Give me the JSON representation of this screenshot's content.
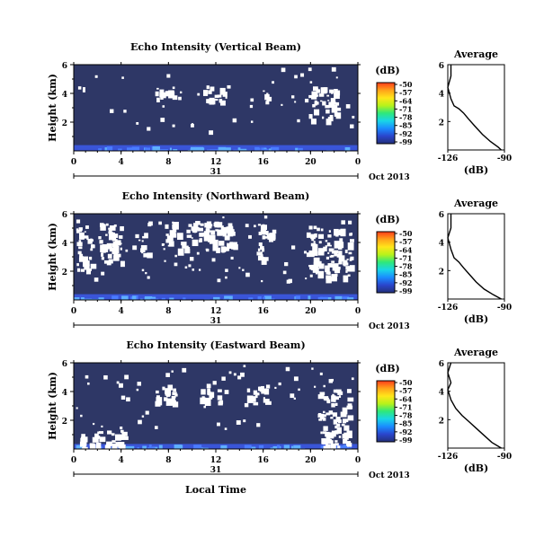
{
  "colors": {
    "background": "#2e3766",
    "near_ground": "#3a55d8",
    "surface": "#4a7cff",
    "gap": "#ffffff",
    "colorbar": [
      "#ff3b1a",
      "#ffa31a",
      "#ffe61a",
      "#b8f21a",
      "#2ee87a",
      "#19d6e6",
      "#1a8cff",
      "#2a45cc",
      "#23307a"
    ]
  },
  "panels": [
    {
      "title": "Echo Intensity (Vertical Beam)",
      "ylabel": "Height (km)",
      "yticks": [
        "6",
        "4",
        "2"
      ],
      "xticks": [
        "0",
        "4",
        "8",
        "12",
        "16",
        "20",
        "0"
      ],
      "date_day": "31",
      "date_label": "Oct 2013",
      "cb_unit": "(dB)",
      "cb_ticks": [
        "-50",
        "-57",
        "-64",
        "-71",
        "-78",
        "-85",
        "-92",
        "-99"
      ],
      "avg_title": "Average",
      "avg_yticks": [
        "6",
        "4",
        "2"
      ],
      "avg_xticks": [
        "-126",
        "-90"
      ],
      "avg_xlabel": "(dB)"
    },
    {
      "title": "Echo Intensity (Northward Beam)",
      "ylabel": "Height (km)",
      "yticks": [
        "6",
        "4",
        "2"
      ],
      "xticks": [
        "0",
        "4",
        "8",
        "12",
        "16",
        "20",
        "0"
      ],
      "date_day": "31",
      "date_label": "Oct 2013",
      "cb_unit": "(dB)",
      "cb_ticks": [
        "-50",
        "-57",
        "-64",
        "-71",
        "-78",
        "-85",
        "-92",
        "-99"
      ],
      "avg_title": "Average",
      "avg_yticks": [
        "6",
        "4",
        "2"
      ],
      "avg_xticks": [
        "-126",
        "-90"
      ],
      "avg_xlabel": "(dB)"
    },
    {
      "title": "Echo Intensity (Eastward Beam)",
      "ylabel": "Height (km)",
      "yticks": [
        "6",
        "4",
        "2"
      ],
      "xticks": [
        "0",
        "4",
        "8",
        "12",
        "16",
        "20",
        "0"
      ],
      "date_day": "31",
      "date_label": "Oct 2013",
      "cb_unit": "(dB)",
      "cb_ticks": [
        "-50",
        "-57",
        "-64",
        "-71",
        "-78",
        "-85",
        "-92",
        "-99"
      ],
      "avg_title": "Average",
      "avg_yticks": [
        "6",
        "4",
        "2"
      ],
      "avg_xticks": [
        "-126",
        "-90"
      ],
      "avg_xlabel": "(dB)"
    }
  ],
  "footer_label": "Local Time",
  "chart_data": [
    {
      "type": "heatmap",
      "title": "Echo Intensity (Vertical Beam)",
      "xlabel": "Local Time",
      "ylabel": "Height (km)",
      "xlim": [
        0,
        24
      ],
      "ylim": [
        0,
        6
      ],
      "colorbar": {
        "label": "(dB)",
        "range": [
          -99,
          -50
        ]
      },
      "gap_patches": [
        {
          "x": [
            6.8,
            8.8
          ],
          "y": [
            3.6,
            4.5
          ]
        },
        {
          "x": [
            10.8,
            13.0
          ],
          "y": [
            3.5,
            4.6
          ]
        },
        {
          "x": [
            15.8,
            16.4
          ],
          "y": [
            3.4,
            4.5
          ]
        },
        {
          "x": [
            19.8,
            22.2
          ],
          "y": [
            2.2,
            4.5
          ]
        }
      ],
      "surface_layer": {
        "x": [
          0,
          24
        ],
        "y_top_km": 0.4,
        "value_db": -85
      }
    },
    {
      "type": "line",
      "title": "Average",
      "xlabel": "(dB)",
      "xlim": [
        -126,
        -90
      ],
      "ylim": [
        0,
        6
      ],
      "series": [
        {
          "values": [
            [
              -124,
              6.0
            ],
            [
              -124,
              5.2
            ],
            [
              -126,
              4.4
            ],
            [
              -124,
              3.6
            ],
            [
              -122,
              3.1
            ],
            [
              -119,
              2.9
            ],
            [
              -116,
              2.6
            ],
            [
              -113,
              2.2
            ],
            [
              -109,
              1.7
            ],
            [
              -104,
              1.1
            ],
            [
              -99,
              0.6
            ],
            [
              -94,
              0.2
            ],
            [
              -92,
              0.0
            ]
          ]
        }
      ]
    },
    {
      "type": "heatmap",
      "title": "Echo Intensity (Northward Beam)",
      "xlabel": "Local Time",
      "ylabel": "Height (km)",
      "xlim": [
        0,
        24
      ],
      "ylim": [
        0,
        6
      ],
      "colorbar": {
        "label": "(dB)",
        "range": [
          -99,
          -50
        ]
      },
      "gap_patches": [
        {
          "x": [
            0.2,
            1.5
          ],
          "y": [
            1.8,
            5.2
          ]
        },
        {
          "x": [
            2.2,
            4.0
          ],
          "y": [
            2.6,
            5.4
          ]
        },
        {
          "x": [
            5.4,
            6.2
          ],
          "y": [
            3.2,
            4.8
          ]
        },
        {
          "x": [
            7.2,
            13.5
          ],
          "y": [
            3.5,
            5.5
          ]
        },
        {
          "x": [
            15.4,
            16.6
          ],
          "y": [
            2.6,
            5.6
          ]
        },
        {
          "x": [
            19.6,
            23.4
          ],
          "y": [
            1.6,
            5.0
          ]
        }
      ],
      "surface_layer": {
        "x": [
          0,
          24
        ],
        "y_top_km": 0.4,
        "value_db": -85
      }
    },
    {
      "type": "line",
      "title": "Average",
      "xlabel": "(dB)",
      "xlim": [
        -126,
        -90
      ],
      "ylim": [
        0,
        6
      ],
      "series": [
        {
          "values": [
            [
              -124,
              6.0
            ],
            [
              -124,
              5.0
            ],
            [
              -126,
              4.3
            ],
            [
              -124,
              3.5
            ],
            [
              -122,
              2.9
            ],
            [
              -119,
              2.6
            ],
            [
              -116,
              2.2
            ],
            [
              -112,
              1.7
            ],
            [
              -108,
              1.2
            ],
            [
              -103,
              0.7
            ],
            [
              -97,
              0.3
            ],
            [
              -92,
              0.0
            ]
          ]
        }
      ]
    },
    {
      "type": "heatmap",
      "title": "Echo Intensity (Eastward Beam)",
      "xlabel": "Local Time",
      "ylabel": "Height (km)",
      "xlim": [
        0,
        24
      ],
      "ylim": [
        0,
        6
      ],
      "colorbar": {
        "label": "(dB)",
        "range": [
          -99,
          -50
        ]
      },
      "gap_patches": [
        {
          "x": [
            0.4,
            2.2
          ],
          "y": [
            0.1,
            1.6
          ]
        },
        {
          "x": [
            2.6,
            4.2
          ],
          "y": [
            0.1,
            1.4
          ]
        },
        {
          "x": [
            6.8,
            8.6
          ],
          "y": [
            3.2,
            4.6
          ]
        },
        {
          "x": [
            10.6,
            12.4
          ],
          "y": [
            3.3,
            4.3
          ]
        },
        {
          "x": [
            14.6,
            16.4
          ],
          "y": [
            3.2,
            4.6
          ]
        },
        {
          "x": [
            20.6,
            23.2
          ],
          "y": [
            0.2,
            4.2
          ]
        }
      ],
      "surface_layer": {
        "x": [
          0,
          24
        ],
        "y_top_km": 0.35,
        "value_db": -85
      }
    },
    {
      "type": "line",
      "title": "Average",
      "xlabel": "(dB)",
      "xlim": [
        -126,
        -90
      ],
      "ylim": [
        0,
        6
      ],
      "series": [
        {
          "values": [
            [
              -124,
              6.0
            ],
            [
              -126,
              5.3
            ],
            [
              -124,
              4.6
            ],
            [
              -126,
              4.1
            ],
            [
              -124,
              3.4
            ],
            [
              -121,
              2.8
            ],
            [
              -117,
              2.3
            ],
            [
              -113,
              1.9
            ],
            [
              -108,
              1.4
            ],
            [
              -103,
              0.9
            ],
            [
              -98,
              0.4
            ],
            [
              -92,
              0.0
            ]
          ]
        }
      ]
    }
  ]
}
